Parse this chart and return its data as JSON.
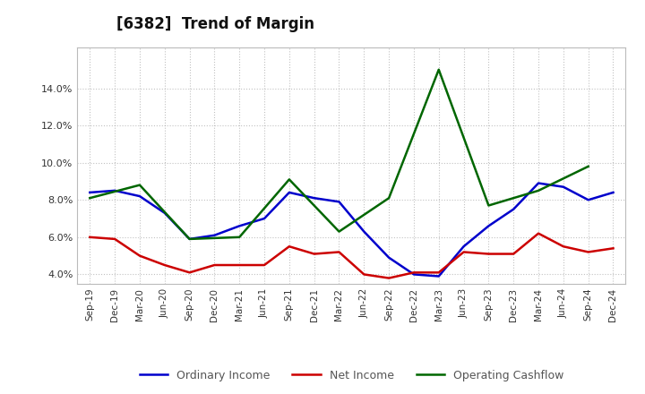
{
  "title": "[6382]  Trend of Margin",
  "x_labels": [
    "Sep-19",
    "Dec-19",
    "Mar-20",
    "Jun-20",
    "Sep-20",
    "Dec-20",
    "Mar-21",
    "Jun-21",
    "Sep-21",
    "Dec-21",
    "Mar-22",
    "Jun-22",
    "Sep-22",
    "Dec-22",
    "Mar-23",
    "Jun-23",
    "Sep-23",
    "Dec-23",
    "Mar-24",
    "Jun-24",
    "Sep-24",
    "Dec-24"
  ],
  "ordinary_income": [
    8.4,
    8.5,
    8.2,
    7.3,
    5.9,
    6.1,
    6.6,
    7.0,
    8.4,
    8.1,
    7.9,
    6.3,
    4.9,
    4.0,
    3.9,
    5.5,
    6.6,
    7.5,
    8.9,
    8.7,
    8.0,
    8.4
  ],
  "net_income": [
    6.0,
    5.9,
    5.0,
    4.5,
    4.1,
    4.5,
    4.5,
    4.5,
    5.5,
    5.1,
    5.2,
    4.0,
    3.8,
    4.1,
    4.1,
    5.2,
    5.1,
    5.1,
    6.2,
    5.5,
    5.2,
    5.4
  ],
  "operating_cashflow": [
    8.1,
    null,
    8.8,
    null,
    5.9,
    null,
    6.0,
    null,
    9.1,
    null,
    6.3,
    null,
    8.1,
    null,
    15.0,
    null,
    7.7,
    null,
    8.5,
    null,
    9.8,
    null
  ],
  "ylim": [
    3.5,
    16.2
  ],
  "yticks": [
    4.0,
    6.0,
    8.0,
    10.0,
    12.0,
    14.0
  ],
  "line_colors": {
    "ordinary_income": "#0000cc",
    "net_income": "#cc0000",
    "operating_cashflow": "#006600"
  },
  "legend_labels": [
    "Ordinary Income",
    "Net Income",
    "Operating Cashflow"
  ],
  "background_color": "#ffffff",
  "grid_color": "#999999"
}
